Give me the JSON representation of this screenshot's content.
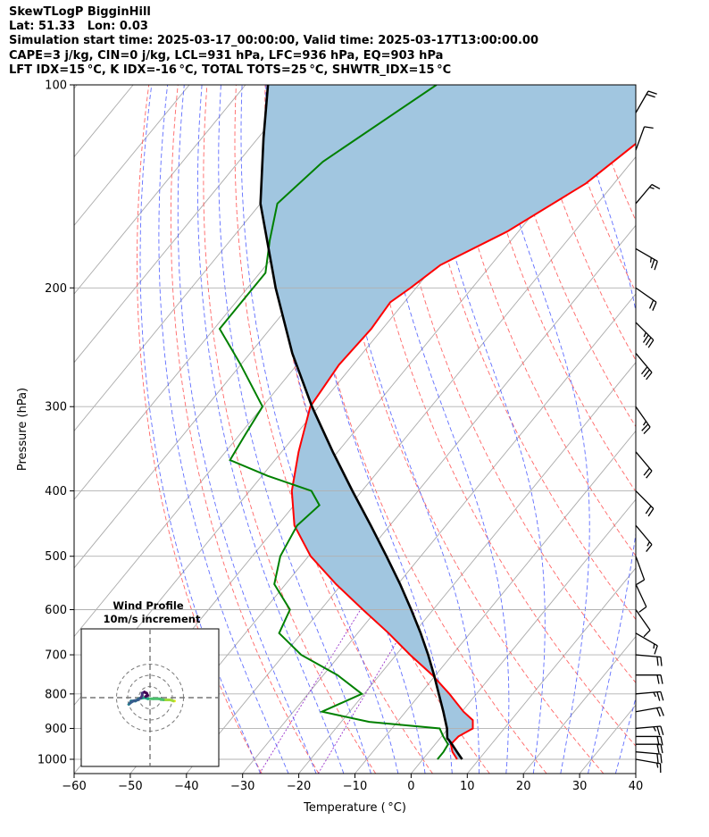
{
  "title_lines": [
    "SkewTLogP BigginHill",
    "Lat: 51.33   Lon: 0.03",
    "Simulation start time: 2025-03-17_00:00:00, Valid time: 2025-03-17T13:00:00.00",
    "CAPE=3 j/kg, CIN=0 j/kg, LCL=931 hPa, LFC=936 hPa, EQ=903 hPa",
    "LFT IDX=15 °C, K IDX=-16 °C, TOTAL TOTS=25 °C, SHWTR_IDX=15 °C"
  ],
  "colors": {
    "temperature": "#ff0000",
    "dewpoint": "#008000",
    "parcel": "#000000",
    "cape_fill": "#a1c6e0",
    "dry_adiabats": "#ff5555",
    "moist_adiabats": "#4455ff",
    "mixing_ratio": "#9933cc",
    "isotherms": "#aaaaaa"
  },
  "chart_data": [
    {
      "type": "line",
      "chart_kind": "skew-t log-p",
      "xlabel": "Temperature ( °C)",
      "ylabel": "Pressure (hPa)",
      "xlim": [
        -60,
        40
      ],
      "ylim": [
        1050,
        100
      ],
      "yscale": "log",
      "x_ticks": [
        "−60",
        "−50",
        "−40",
        "−30",
        "−20",
        "−10",
        "0",
        "10",
        "20",
        "30",
        "40"
      ],
      "x_tick_values": [
        -60,
        -50,
        -40,
        -30,
        -20,
        -10,
        0,
        10,
        20,
        30,
        40
      ],
      "y_ticks": [
        "100",
        "200",
        "300",
        "400",
        "500",
        "600",
        "700",
        "800",
        "900",
        "1000"
      ],
      "y_tick_values": [
        100,
        200,
        300,
        400,
        500,
        600,
        700,
        800,
        900,
        1000
      ],
      "grid": true,
      "series": [
        {
          "role": "temperature",
          "pressure_hPa": [
            1000,
            975,
            950,
            925,
            900,
            875,
            850,
            800,
            750,
            700,
            650,
            600,
            550,
            500,
            450,
            400,
            350,
            300,
            260,
            230,
            210,
            200,
            185,
            165,
            140,
            120,
            100
          ],
          "temperature_C": [
            6.1,
            4.2,
            2.8,
            3.0,
            4.4,
            3.2,
            0.3,
            -4.8,
            -10.6,
            -17.5,
            -24.5,
            -32.5,
            -41.0,
            -49.6,
            -57.0,
            -62.5,
            -67.0,
            -71.5,
            -72.5,
            -72.0,
            -72.5,
            -71.0,
            -69.0,
            -62.0,
            -55.0,
            -51.5,
            -51.5
          ]
        },
        {
          "role": "dewpoint",
          "pressure_hPa": [
            1000,
            975,
            950,
            925,
            900,
            880,
            850,
            800,
            750,
            700,
            650,
            600,
            550,
            500,
            450,
            420,
            400,
            380,
            360,
            330,
            300,
            260,
            230,
            210,
            190,
            170,
            150,
            130,
            100
          ],
          "dewpoint_C": [
            2.6,
            2.6,
            2.3,
            0.3,
            -1.5,
            -15.0,
            -24.9,
            -20.4,
            -27.5,
            -36.9,
            -44.0,
            -45.5,
            -52.0,
            -55.0,
            -56.5,
            -55.5,
            -59.0,
            -69.0,
            -78.0,
            -79.0,
            -80.0,
            -90.0,
            -99.0,
            -99.0,
            -99.0,
            -103.0,
            -107.0,
            -105.0,
            -96.0
          ]
        },
        {
          "role": "parcel",
          "pressure_hPa": [
            1000,
            975,
            950,
            936,
            931,
            900,
            850,
            800,
            750,
            700,
            650,
            600,
            550,
            500,
            450,
            400,
            350,
            300,
            250,
            200,
            150,
            120,
            100
          ],
          "temperature_C": [
            7.0,
            5.0,
            3.0,
            1.8,
            1.3,
            -0.2,
            -3.3,
            -6.7,
            -10.3,
            -14.3,
            -18.8,
            -23.9,
            -29.6,
            -36.1,
            -43.4,
            -51.7,
            -60.9,
            -71.2,
            -82.5,
            -95.0,
            -110.0,
            -119.0,
            -126.0
          ]
        }
      ],
      "wind_barbs": {
        "pressure_hPa": [
          1000,
          975,
          950,
          925,
          900,
          850,
          800,
          750,
          700,
          650,
          600,
          550,
          500,
          450,
          400,
          350,
          300,
          250,
          225,
          200,
          175,
          150,
          125,
          110
        ],
        "speed_kt": [
          15,
          20,
          20,
          20,
          25,
          20,
          25,
          20,
          20,
          15,
          10,
          10,
          10,
          15,
          20,
          20,
          25,
          30,
          35,
          20,
          25,
          15,
          10,
          20
        ],
        "direction_deg": [
          100,
          95,
          90,
          90,
          85,
          80,
          85,
          90,
          95,
          120,
          145,
          155,
          160,
          140,
          135,
          140,
          145,
          140,
          135,
          125,
          120,
          40,
          20,
          30
        ]
      }
    },
    {
      "type": "line",
      "chart_kind": "hodograph",
      "title_lines": [
        "Wind Profile",
        "10m/s increment"
      ],
      "ring_increment_ms": 10,
      "rings_ms": [
        10,
        20,
        30
      ],
      "points_ms": {
        "u": [
          22,
          21,
          18,
          15,
          12,
          8,
          3,
          -2,
          -5,
          -10,
          -13,
          -17,
          -18,
          -19,
          -18,
          -15,
          -11,
          -8,
          -7,
          -7,
          -5,
          -3,
          -2,
          -4
        ],
        "v": [
          -3,
          -3,
          -2,
          -2,
          -2,
          -1,
          -1,
          -1,
          0,
          -1,
          -3,
          -3,
          -5,
          -6,
          -5,
          -3,
          -2,
          0,
          2,
          4,
          5,
          4,
          2,
          1
        ]
      }
    }
  ]
}
